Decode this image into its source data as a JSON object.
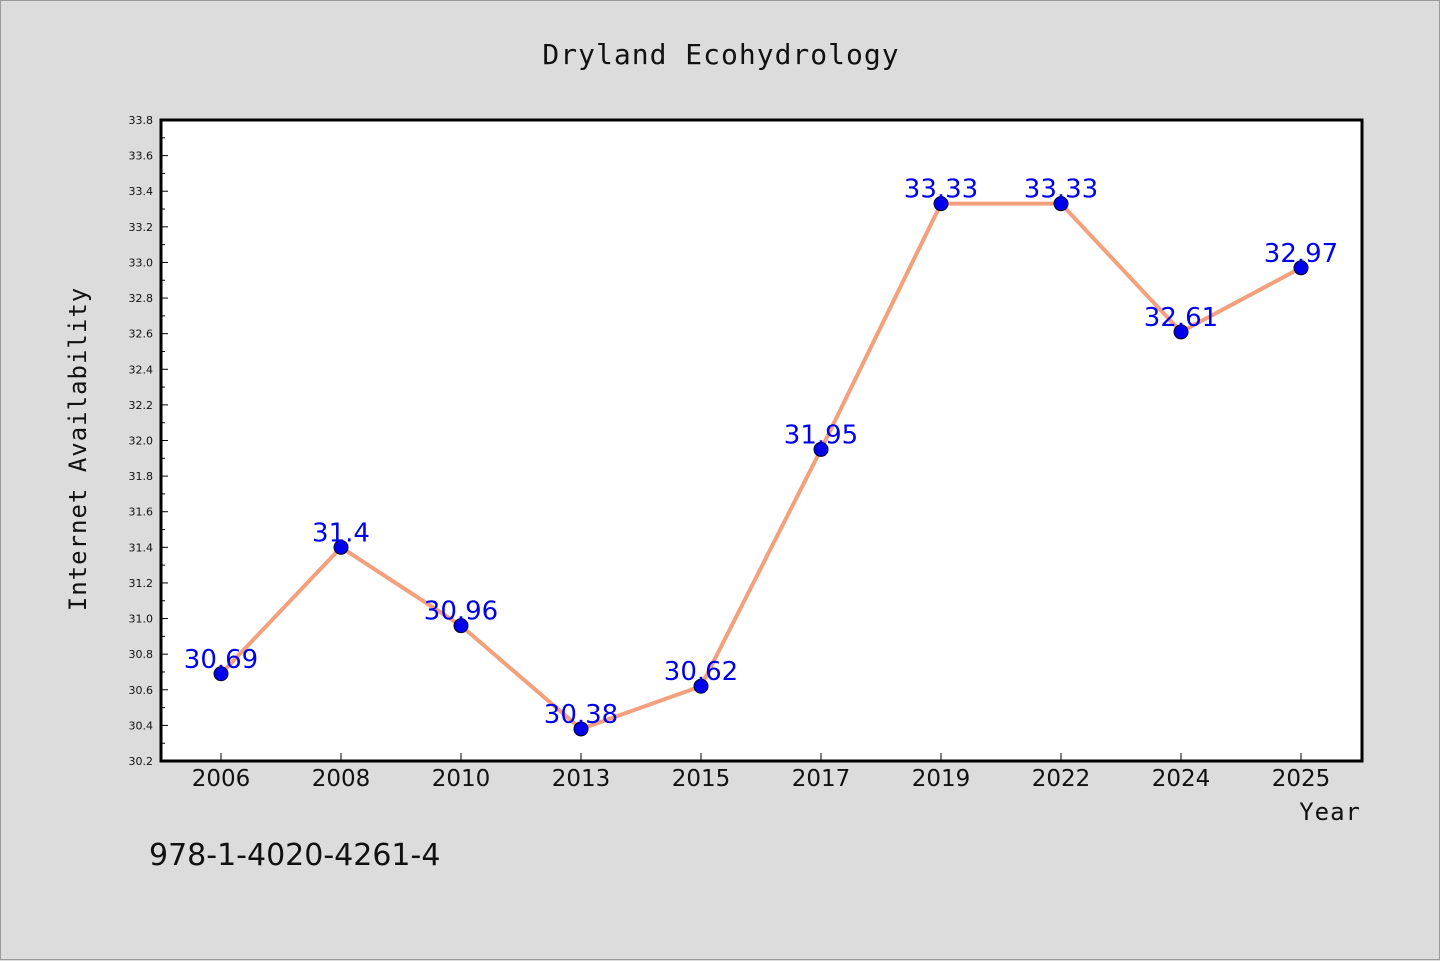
{
  "chart_data": {
    "type": "line",
    "title": "Dryland Ecohydrology",
    "xlabel": "Year",
    "ylabel": "Internet Availability",
    "categories": [
      "2006",
      "2008",
      "2010",
      "2013",
      "2015",
      "2017",
      "2019",
      "2022",
      "2024",
      "2025"
    ],
    "series": [
      {
        "values": [
          30.69,
          31.4,
          30.96,
          30.38,
          30.62,
          31.95,
          33.33,
          33.33,
          32.61,
          32.97
        ],
        "data_labels": [
          "30.69",
          "31.4",
          "30.96",
          "30.38",
          "30.62",
          "31.95",
          "33.33",
          "33.33",
          "32.61",
          "32.97"
        ],
        "line_color": "#f4a07c",
        "marker_color": "#0000ee",
        "label_color": "#0000ee"
      }
    ],
    "ylim": [
      30.2,
      33.8
    ],
    "yticks": [
      "30.2",
      "30.4",
      "30.6",
      "30.8",
      "31.0",
      "31.2",
      "31.4",
      "31.6",
      "31.8",
      "32.0",
      "32.2",
      "32.4",
      "32.6",
      "32.8",
      "33.0",
      "33.2",
      "33.4",
      "33.6",
      "33.8"
    ],
    "grid": false,
    "legend": "none"
  },
  "footer": {
    "isbn": "978-1-4020-4261-4"
  }
}
